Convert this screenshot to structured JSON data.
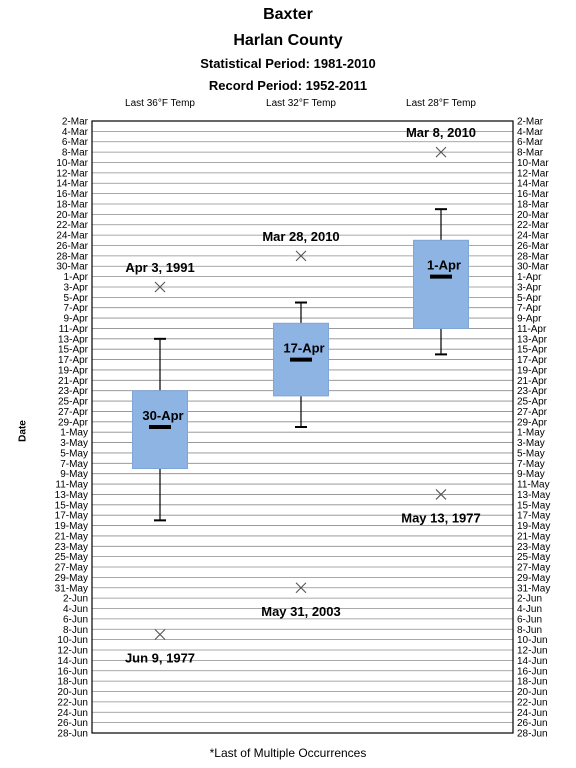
{
  "title": {
    "station": "Baxter",
    "county": "Harlan  County",
    "statistical_period": "Statistical Period: 1981-2010",
    "record_period": "Record Period: 1952-2011"
  },
  "footnote": "*Last of Multiple Occurrences",
  "chart_data": {
    "type": "box",
    "ylabel": "Date",
    "y_ticks": [
      "2-Mar",
      "4-Mar",
      "6-Mar",
      "8-Mar",
      "10-Mar",
      "12-Mar",
      "14-Mar",
      "16-Mar",
      "18-Mar",
      "20-Mar",
      "22-Mar",
      "24-Mar",
      "26-Mar",
      "28-Mar",
      "30-Mar",
      "1-Apr",
      "3-Apr",
      "5-Apr",
      "7-Apr",
      "9-Apr",
      "11-Apr",
      "13-Apr",
      "15-Apr",
      "17-Apr",
      "19-Apr",
      "21-Apr",
      "23-Apr",
      "25-Apr",
      "27-Apr",
      "29-Apr",
      "1-May",
      "3-May",
      "5-May",
      "7-May",
      "9-May",
      "11-May",
      "13-May",
      "15-May",
      "17-May",
      "19-May",
      "21-May",
      "23-May",
      "25-May",
      "27-May",
      "29-May",
      "31-May",
      "2-Jun",
      "4-Jun",
      "6-Jun",
      "8-Jun",
      "10-Jun",
      "12-Jun",
      "14-Jun",
      "16-Jun",
      "18-Jun",
      "20-Jun",
      "22-Jun",
      "24-Jun",
      "26-Jun",
      "28-Jun"
    ],
    "ylim": [
      "2-Mar",
      "28-Jun"
    ],
    "y_axis_reversed": true,
    "grid": true,
    "series": [
      {
        "name": "Last 36°F Temp",
        "whisker_top": "13-Apr",
        "box_top": "23-Apr",
        "median": "30-Apr",
        "box_bottom": "8-May",
        "whisker_bottom": "18-May",
        "median_label": "30-Apr",
        "records": [
          {
            "date": "3-Apr",
            "label": "Apr 3, 1991",
            "label_pos": "above"
          },
          {
            "date": "9-Jun",
            "label": "Jun 9, 1977",
            "label_pos": "below"
          }
        ]
      },
      {
        "name": "Last 32°F Temp",
        "whisker_top": "6-Apr",
        "box_top": "10-Apr",
        "median": "17-Apr",
        "box_bottom": "24-Apr",
        "whisker_bottom": "30-Apr",
        "median_label": "17-Apr",
        "records": [
          {
            "date": "28-Mar",
            "label": "Mar 28, 2010",
            "label_pos": "above"
          },
          {
            "date": "31-May",
            "label": "May 31, 2003",
            "label_pos": "below"
          }
        ]
      },
      {
        "name": "Last 28°F Temp",
        "whisker_top": "19-Mar",
        "box_top": "25-Mar",
        "median": "1-Apr",
        "box_bottom": "11-Apr",
        "whisker_bottom": "16-Apr",
        "median_label": "1-Apr",
        "records": [
          {
            "date": "8-Mar",
            "label": "Mar 8, 2010",
            "label_pos": "above"
          },
          {
            "date": "13-May",
            "label": "May 13, 1977",
            "label_pos": "below"
          }
        ]
      }
    ]
  }
}
